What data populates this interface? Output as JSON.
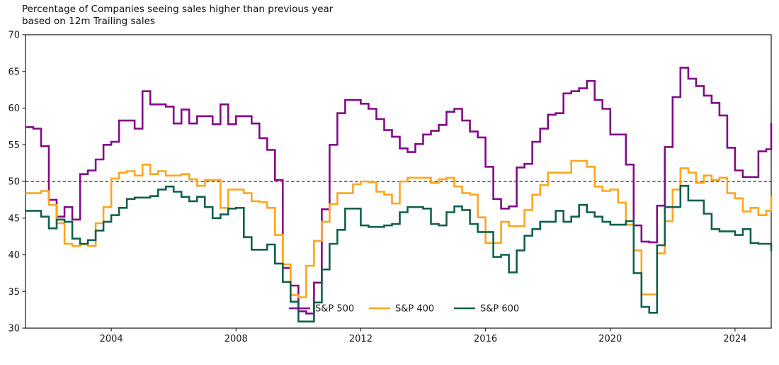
{
  "title": {
    "line1": "Percentage of Companies seeing sales higher than previous year",
    "line2": "based on 12m Trailing sales"
  },
  "chart_data": {
    "type": "line",
    "step_mode": "post",
    "title": "Percentage of Companies seeing sales higher than previous year based on 12m Trailing sales",
    "xlabel": "",
    "ylabel": "",
    "xlim": [
      2001.25,
      2025.16
    ],
    "ylim": [
      30,
      70
    ],
    "x_ticks": [
      2004,
      2008,
      2012,
      2016,
      2020,
      2024
    ],
    "x_tick_labels": [
      "2004",
      "2008",
      "2012",
      "2016",
      "2020",
      "2024"
    ],
    "y_ticks": [
      30,
      35,
      40,
      45,
      50,
      55,
      60,
      65,
      70
    ],
    "y_tick_labels": [
      "30",
      "35",
      "40",
      "45",
      "50",
      "55",
      "60",
      "65",
      "70"
    ],
    "grid": false,
    "reference_line": {
      "value": 50,
      "style": "dashed",
      "color": "#2a2a2a"
    },
    "legend": {
      "position": "inside-bottom-center",
      "labels": [
        "S&P 500",
        "S&P 400",
        "S&P 600"
      ]
    },
    "x_start": 2001.25,
    "x_step": 0.25,
    "series": [
      {
        "name": "S&P 500",
        "color": "#820A86",
        "values": [
          57.4,
          57.2,
          54.8,
          47.5,
          45.2,
          46.5,
          44.8,
          51.0,
          51.5,
          53.0,
          55.0,
          55.4,
          58.3,
          58.3,
          57.2,
          62.3,
          60.5,
          60.5,
          60.2,
          57.9,
          59.8,
          57.9,
          58.9,
          58.9,
          57.8,
          60.5,
          57.8,
          58.9,
          58.9,
          57.9,
          55.9,
          54.3,
          50.2,
          38.2,
          35.8,
          32.3,
          32.0,
          36.2,
          46.2,
          55.0,
          59.3,
          61.1,
          61.1,
          60.6,
          59.9,
          58.5,
          57.0,
          56.1,
          54.5,
          54.0,
          55.1,
          56.4,
          56.9,
          57.7,
          59.5,
          59.9,
          58.3,
          56.8,
          56.0,
          52.0,
          47.6,
          46.3,
          46.6,
          51.9,
          52.4,
          55.4,
          57.2,
          59.1,
          59.3,
          62.0,
          62.3,
          62.7,
          63.7,
          61.1,
          59.9,
          56.4,
          56.4,
          52.3,
          44.0,
          41.8,
          41.7,
          46.7,
          54.7,
          61.5,
          65.5,
          64.0,
          63.0,
          61.7,
          60.7,
          59.0,
          54.6,
          51.5,
          50.6,
          50.6,
          54.1,
          54.4,
          58.0
        ]
      },
      {
        "name": "S&P 400",
        "color": "#FFA51F",
        "values": [
          48.4,
          48.4,
          48.7,
          46.8,
          44.3,
          41.5,
          41.2,
          41.4,
          41.2,
          44.3,
          46.5,
          50.4,
          51.2,
          51.4,
          50.8,
          52.3,
          51.0,
          51.4,
          50.8,
          50.8,
          51.0,
          50.3,
          49.4,
          50.2,
          50.2,
          46.4,
          48.9,
          48.9,
          48.4,
          47.3,
          47.2,
          46.4,
          42.7,
          38.7,
          34.5,
          34.2,
          38.5,
          41.9,
          44.5,
          46.9,
          48.4,
          48.4,
          49.6,
          50.0,
          49.9,
          48.6,
          48.2,
          47.0,
          50.0,
          50.5,
          50.5,
          50.5,
          49.8,
          50.3,
          50.5,
          49.3,
          48.4,
          48.2,
          45.1,
          41.6,
          41.6,
          44.5,
          43.9,
          43.9,
          46.1,
          48.2,
          49.5,
          51.2,
          51.2,
          51.2,
          52.8,
          52.8,
          52.0,
          49.3,
          48.7,
          48.9,
          47.1,
          44.1,
          40.6,
          34.6,
          34.6,
          40.2,
          44.6,
          48.9,
          51.8,
          51.2,
          49.8,
          50.8,
          50.2,
          50.5,
          48.4,
          47.7,
          45.9,
          46.4,
          45.4,
          46.0,
          48.0
        ]
      },
      {
        "name": "S&P 600",
        "color": "#10604D",
        "values": [
          46.0,
          46.0,
          45.2,
          43.6,
          44.8,
          44.5,
          42.2,
          41.5,
          42.0,
          43.3,
          44.5,
          45.4,
          46.4,
          47.6,
          47.8,
          47.8,
          48.0,
          48.9,
          49.3,
          48.6,
          47.9,
          47.3,
          47.9,
          46.5,
          45.0,
          45.5,
          46.3,
          46.4,
          42.4,
          40.7,
          40.7,
          41.4,
          38.8,
          36.3,
          33.6,
          30.9,
          30.9,
          33.5,
          38.0,
          41.5,
          43.4,
          46.3,
          46.3,
          44.0,
          43.8,
          43.8,
          44.0,
          44.2,
          45.8,
          46.5,
          46.5,
          46.3,
          44.2,
          44.0,
          45.8,
          46.6,
          46.1,
          44.2,
          43.1,
          43.1,
          39.7,
          40.0,
          37.6,
          40.6,
          42.6,
          43.5,
          44.5,
          44.5,
          46.0,
          44.5,
          45.2,
          46.8,
          45.8,
          45.2,
          44.5,
          44.1,
          44.1,
          44.6,
          37.5,
          32.9,
          32.1,
          41.3,
          46.5,
          46.5,
          49.4,
          47.4,
          47.4,
          45.6,
          43.5,
          43.2,
          43.2,
          42.7,
          43.5,
          41.6,
          41.5,
          41.5,
          40.5
        ]
      }
    ]
  },
  "style": {
    "axis_color": "#262626",
    "text_color": "#1a1a1a",
    "background": "#ffffff"
  }
}
